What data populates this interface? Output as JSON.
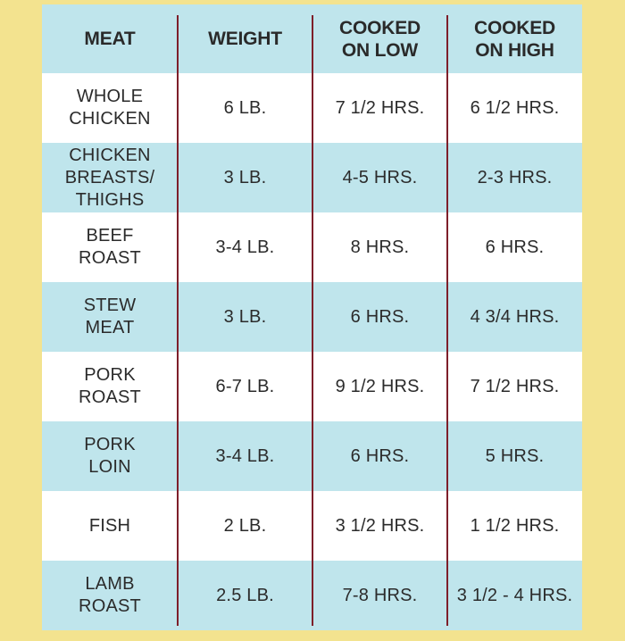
{
  "colors": {
    "page_background": "#f3e38f",
    "row_blue": "#bfe5ec",
    "row_white": "#ffffff",
    "divider": "#7e1f2a",
    "text": "#2b2b2b"
  },
  "table": {
    "headers": [
      [
        "MEAT"
      ],
      [
        "WEIGHT"
      ],
      [
        "COOKED",
        "ON LOW"
      ],
      [
        "COOKED",
        "ON HIGH"
      ]
    ],
    "rows": [
      {
        "shade": "white",
        "cells": [
          [
            "WHOLE",
            "CHICKEN"
          ],
          [
            "6 LB."
          ],
          [
            "7 1/2 HRS."
          ],
          [
            "6 1/2 HRS."
          ]
        ]
      },
      {
        "shade": "blue",
        "cells": [
          [
            "CHICKEN",
            "BREASTS/",
            "THIGHS"
          ],
          [
            "3 LB."
          ],
          [
            "4-5 HRS."
          ],
          [
            "2-3 HRS."
          ]
        ]
      },
      {
        "shade": "white",
        "cells": [
          [
            "BEEF",
            "ROAST"
          ],
          [
            "3-4 LB."
          ],
          [
            "8 HRS."
          ],
          [
            "6 HRS."
          ]
        ]
      },
      {
        "shade": "blue",
        "cells": [
          [
            "STEW",
            "MEAT"
          ],
          [
            "3 LB."
          ],
          [
            "6 HRS."
          ],
          [
            "4 3/4 HRS."
          ]
        ]
      },
      {
        "shade": "white",
        "cells": [
          [
            "PORK",
            "ROAST"
          ],
          [
            "6-7 LB."
          ],
          [
            "9 1/2 HRS."
          ],
          [
            "7 1/2 HRS."
          ]
        ]
      },
      {
        "shade": "blue",
        "cells": [
          [
            "PORK",
            "LOIN"
          ],
          [
            "3-4 LB."
          ],
          [
            "6 HRS."
          ],
          [
            "5 HRS."
          ]
        ]
      },
      {
        "shade": "white",
        "cells": [
          [
            "FISH"
          ],
          [
            "2 LB."
          ],
          [
            "3 1/2 HRS."
          ],
          [
            "1 1/2 HRS."
          ]
        ]
      },
      {
        "shade": "blue",
        "cells": [
          [
            "LAMB",
            "ROAST"
          ],
          [
            "2.5 LB."
          ],
          [
            "7-8 HRS."
          ],
          [
            "3 1/2 - 4  HRS."
          ]
        ]
      }
    ]
  }
}
